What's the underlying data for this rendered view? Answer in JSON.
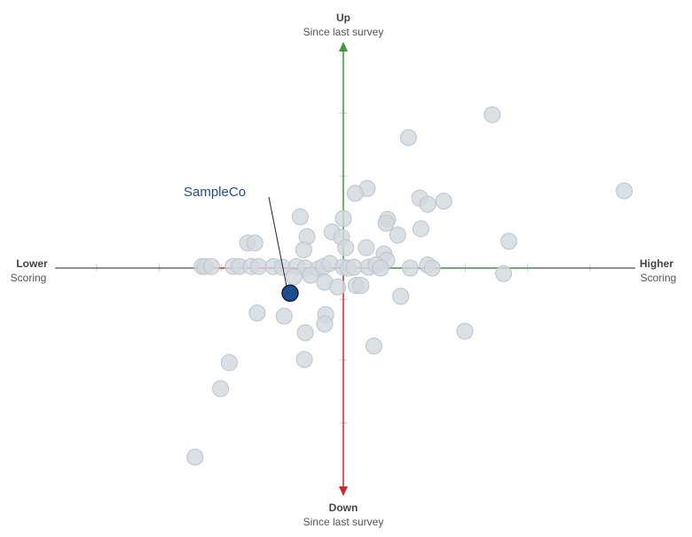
{
  "chart_data": {
    "type": "scatter",
    "title": "",
    "xlabel": "",
    "ylabel": "",
    "xlim": [
      -1,
      1
    ],
    "ylim": [
      -1,
      1
    ],
    "grid": false,
    "colors": {
      "point": "#d2d8de",
      "point_stroke": "#bcc4cc",
      "highlight": "#1f4e8c",
      "up_axis": "#3a9a3a",
      "down_axis": "#d0262e",
      "left_axis": "#d0262e",
      "right_axis": "#3a9a3a"
    },
    "axis_labels": {
      "up_title": "Up",
      "up_sub": "Since last survey",
      "down_title": "Down",
      "down_sub": "Since last survey",
      "left_title": "Lower",
      "left_sub": "Scoring",
      "right_title": "Higher",
      "right_sub": "Scoring"
    },
    "highlight": {
      "name": "SampleCo",
      "x": -0.179,
      "y": -0.112
    },
    "points": [
      [
        0.501,
        0.683
      ],
      [
        0.219,
        0.581
      ],
      [
        0.945,
        0.344
      ],
      [
        0.08,
        0.354
      ],
      [
        0.04,
        0.333
      ],
      [
        0.257,
        0.312
      ],
      [
        0.284,
        0.284
      ],
      [
        0.338,
        0.298
      ],
      [
        0.149,
        0.217
      ],
      [
        0.144,
        0.2
      ],
      [
        0.183,
        0.147
      ],
      [
        0.261,
        0.175
      ],
      [
        0.557,
        0.119
      ],
      [
        0.077,
        0.091
      ],
      [
        0.137,
        0.063
      ],
      [
        -0.145,
        0.228
      ],
      [
        -0.122,
        0.14
      ],
      [
        -0.133,
        0.081
      ],
      [
        -0.322,
        0.112
      ],
      [
        -0.298,
        0.112
      ],
      [
        0.0,
        0.221
      ],
      [
        -0.038,
        0.161
      ],
      [
        -0.006,
        0.137
      ],
      [
        0.008,
        0.091
      ],
      [
        0.146,
        0.035
      ],
      [
        -0.475,
        0.007
      ],
      [
        -0.465,
        0.007
      ],
      [
        -0.444,
        0.007
      ],
      [
        -0.371,
        0.007
      ],
      [
        -0.35,
        0.007
      ],
      [
        -0.31,
        0.007
      ],
      [
        -0.285,
        0.007
      ],
      [
        -0.236,
        0.007
      ],
      [
        -0.205,
        0.004
      ],
      [
        -0.157,
        0.007
      ],
      [
        -0.128,
        0.0
      ],
      [
        -0.084,
        -0.004
      ],
      [
        -0.067,
        0.007
      ],
      [
        -0.045,
        0.021
      ],
      [
        0.0,
        0.004
      ],
      [
        0.016,
        0.0
      ],
      [
        0.036,
        0.004
      ],
      [
        0.085,
        0.004
      ],
      [
        0.11,
        0.014
      ],
      [
        0.125,
        0.0
      ],
      [
        0.225,
        0.0
      ],
      [
        0.284,
        0.014
      ],
      [
        0.299,
        0.0
      ],
      [
        0.539,
        -0.025
      ],
      [
        -0.166,
        -0.039
      ],
      [
        -0.11,
        -0.032
      ],
      [
        -0.063,
        -0.063
      ],
      [
        -0.019,
        -0.084
      ],
      [
        0.043,
        -0.077
      ],
      [
        0.059,
        -0.077
      ],
      [
        0.193,
        -0.126
      ],
      [
        -0.29,
        -0.2
      ],
      [
        -0.199,
        -0.214
      ],
      [
        -0.059,
        -0.207
      ],
      [
        -0.063,
        -0.249
      ],
      [
        -0.128,
        -0.288
      ],
      [
        0.103,
        -0.347
      ],
      [
        0.409,
        -0.281
      ],
      [
        -0.131,
        -0.407
      ],
      [
        -0.384,
        -0.421
      ],
      [
        -0.413,
        -0.537
      ],
      [
        -0.499,
        -0.842
      ]
    ]
  }
}
